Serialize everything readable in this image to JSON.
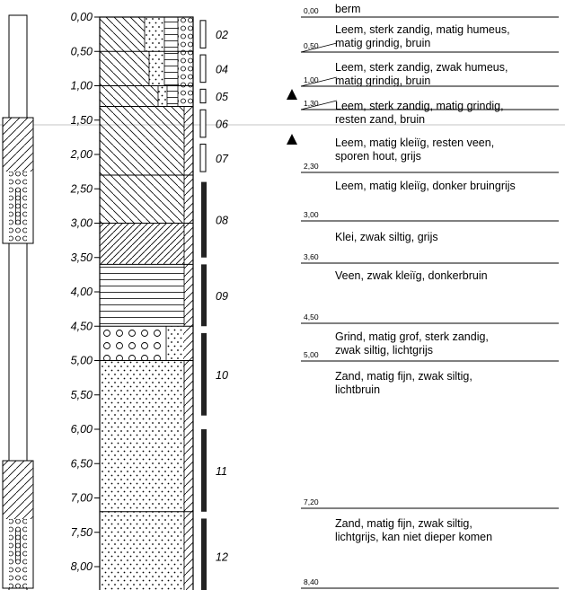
{
  "depth_axis": {
    "ticks": [
      "0,00",
      "0,50",
      "1,00",
      "1,50",
      "2,00",
      "2,50",
      "3,00",
      "3,50",
      "4,00",
      "4,50",
      "5,00",
      "5,50",
      "6,00",
      "6,50",
      "7,00",
      "7,50",
      "8,00"
    ],
    "tick_values": [
      0,
      0.5,
      1,
      1.5,
      2,
      2.5,
      3,
      3.5,
      4,
      4.5,
      5,
      5.5,
      6,
      6.5,
      7,
      7.5,
      8
    ],
    "max_depth": 8.4
  },
  "layers": [
    {
      "top": 0.0,
      "bottom": 0.5,
      "fill": "diag_dots_hatch_circles"
    },
    {
      "top": 0.5,
      "bottom": 1.0,
      "fill": "diag_dots_hatch_circles"
    },
    {
      "top": 1.0,
      "bottom": 1.3,
      "fill": "diag_dots_hatch_circles"
    },
    {
      "top": 1.3,
      "bottom": 2.3,
      "fill": "diag_clay"
    },
    {
      "top": 2.3,
      "bottom": 3.0,
      "fill": "diag_clay"
    },
    {
      "top": 3.0,
      "bottom": 3.6,
      "fill": "diag_heavy"
    },
    {
      "top": 3.6,
      "bottom": 4.5,
      "fill": "horizontal"
    },
    {
      "top": 4.5,
      "bottom": 5.0,
      "fill": "circles_dots"
    },
    {
      "top": 5.0,
      "bottom": 7.2,
      "fill": "dots"
    },
    {
      "top": 7.2,
      "bottom": 8.4,
      "fill": "dots"
    }
  ],
  "samples": [
    {
      "label": "02",
      "top": 0.05,
      "bottom": 0.45,
      "type": "open"
    },
    {
      "label": "04",
      "top": 0.55,
      "bottom": 0.95,
      "type": "open"
    },
    {
      "label": "05",
      "top": 1.05,
      "bottom": 1.25,
      "type": "open"
    },
    {
      "label": "06",
      "top": 1.35,
      "bottom": 1.75,
      "type": "open"
    },
    {
      "label": "07",
      "top": 1.85,
      "bottom": 2.25,
      "type": "open"
    },
    {
      "label": "08",
      "top": 2.4,
      "bottom": 3.5,
      "type": "solid"
    },
    {
      "label": "09",
      "top": 3.6,
      "bottom": 4.5,
      "type": "solid"
    },
    {
      "label": "10",
      "top": 4.6,
      "bottom": 5.8,
      "type": "solid"
    },
    {
      "label": "11",
      "top": 6.0,
      "bottom": 7.2,
      "type": "solid"
    },
    {
      "label": "12",
      "top": 7.3,
      "bottom": 8.4,
      "type": "solid"
    }
  ],
  "descriptions": [
    {
      "depth": "0,00",
      "depth_value": 0.0,
      "text": "berm"
    },
    {
      "depth": "0,50",
      "depth_value": 0.5,
      "text": "Leem, sterk zandig, matig humeus,\nmatig grindig, bruin"
    },
    {
      "depth": "1,00",
      "depth_value": 1.0,
      "text": "Leem, sterk zandig, zwak humeus,\nmatig grindig, bruin"
    },
    {
      "depth": "1,30",
      "depth_value": 1.3,
      "text": "Leem, sterk zandig, matig grindig,\nresten zand, bruin"
    },
    {
      "depth": "2,30",
      "depth_value": 2.3,
      "text": "Leem, matig kleiïg, resten veen,\nsporen hout, grijs"
    },
    {
      "depth": "3,00",
      "depth_value": 3.0,
      "text": "Leem, matig kleiïg, donker bruingrijs"
    },
    {
      "depth": "3,60",
      "depth_value": 3.6,
      "text": "Klei, zwak siltig, grijs"
    },
    {
      "depth": "4,50",
      "depth_value": 4.5,
      "text": "Veen, zwak kleiïg, donkerbruin"
    },
    {
      "depth": "5,00",
      "depth_value": 5.0,
      "text": "Grind, matig grof, sterk zandig,\nzwak siltig, lichtgrijs"
    },
    {
      "depth": "7,20",
      "depth_value": 7.2,
      "text": "Zand, matig fijn, zwak siltig,\nlichtbruin"
    },
    {
      "depth": "8,40",
      "depth_value": 8.4,
      "text": "Zand, matig fijn, zwak siltig,\nlichtgrijs, kan niet dieper komen"
    }
  ],
  "markers": [
    {
      "type": "triangle",
      "depth": 1.3
    },
    {
      "type": "triangle",
      "depth": 1.8
    }
  ],
  "colors": {
    "line": "#000000",
    "reference_line": "#b0b0b0",
    "sample_solid": "#222222"
  }
}
